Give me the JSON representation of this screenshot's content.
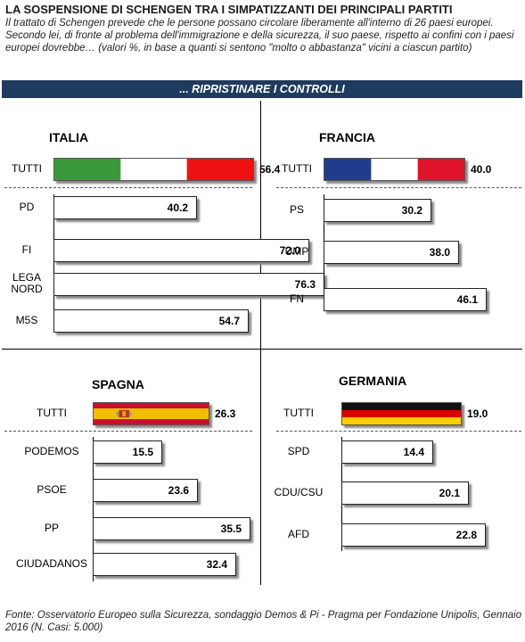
{
  "header": {
    "title": "LA SOSPENSIONE DI SCHENGEN TRA I SIMPATIZZANTI DEI PRINCIPALI PARTITI",
    "subtitle": "Il trattato di Schengen prevede che le persone possano circolare liberamente all'interno di 26 paesi europei. Secondo lei, di fronte al problema dell'immigrazione e della sicurezza, il suo paese, rispetto ai confini con i paesi europei dovrebbe… (valori %, in base a quanti si sentono \"molto o abbastanza\" vicini a ciascun partito)",
    "banner": "... RIPRISTINARE I CONTROLLI"
  },
  "source": "Fonte: Osservatorio Europeo sulla Sicurezza, sondaggio Demos & Pi - Pragma per Fondazione Unipolis, Gennaio 2016 (N. Casi: 5.000)",
  "chart_data": [
    {
      "type": "bar",
      "title": "ITALIA",
      "flag": "italy",
      "colors": [
        "#3a9a3a",
        "#ffffff",
        "#ee1111"
      ],
      "xlim": [
        0,
        100
      ],
      "total": {
        "label": "TUTTI",
        "value": 56.4
      },
      "categories": [
        "PD",
        "FI",
        "LEGA NORD",
        "M5S"
      ],
      "values": [
        40.2,
        72.0,
        76.3,
        54.7
      ]
    },
    {
      "type": "bar",
      "title": "FRANCIA",
      "flag": "france",
      "colors": [
        "#1f3c8f",
        "#ffffff",
        "#e0142b"
      ],
      "xlim": [
        0,
        100
      ],
      "total": {
        "label": "TUTTI",
        "value": 40.0
      },
      "categories": [
        "PS",
        "UMP",
        "FN"
      ],
      "values": [
        30.2,
        38.0,
        46.1
      ]
    },
    {
      "type": "bar",
      "title": "SPAGNA",
      "flag": "spain",
      "colors": [
        "#c8102e",
        "#f1bf00",
        "#c8102e"
      ],
      "xlim": [
        0,
        100
      ],
      "total": {
        "label": "TUTTI",
        "value": 26.3
      },
      "categories": [
        "PODEMOS",
        "PSOE",
        "PP",
        "CIUDADANOS"
      ],
      "values": [
        15.5,
        23.6,
        35.5,
        32.4
      ]
    },
    {
      "type": "bar",
      "title": "GERMANIA",
      "flag": "germany",
      "colors": [
        "#111111",
        "#dd0000",
        "#ffce00"
      ],
      "xlim": [
        0,
        100
      ],
      "total": {
        "label": "TUTTI",
        "value": 19.0
      },
      "categories": [
        "SPD",
        "CDU/CSU",
        "AFD"
      ],
      "values": [
        14.4,
        20.1,
        22.8
      ]
    }
  ]
}
